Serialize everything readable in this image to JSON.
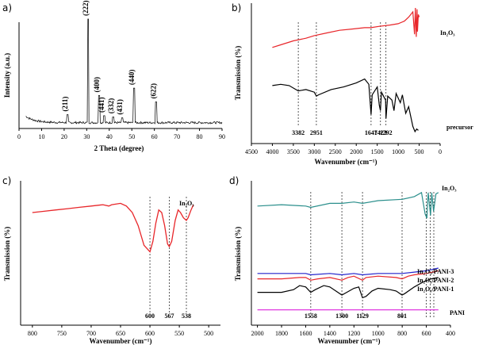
{
  "chart_data": [
    {
      "panel": "a)",
      "type": "line",
      "xlabel": "2 Theta (degree)",
      "ylabel": "Intensity (a.u.)",
      "xlim": [
        0,
        90
      ],
      "xticks": [
        0,
        10,
        20,
        30,
        40,
        50,
        60,
        70,
        80,
        90
      ],
      "color": "#000000",
      "peaks": [
        {
          "label": "(211)",
          "x": 21.5,
          "h": 0.1
        },
        {
          "label": "(222)",
          "x": 30.6,
          "h": 1.0
        },
        {
          "label": "(400)",
          "x": 35.5,
          "h": 0.28
        },
        {
          "label": "(441)",
          "x": 37.7,
          "h": 0.09
        },
        {
          "label": "(332)",
          "x": 41.8,
          "h": 0.08
        },
        {
          "label": "(431)",
          "x": 45.7,
          "h": 0.07
        },
        {
          "label": "(440)",
          "x": 51.0,
          "h": 0.35
        },
        {
          "label": "(622)",
          "x": 60.7,
          "h": 0.22
        }
      ]
    },
    {
      "panel": "b)",
      "type": "line",
      "xlabel": "Wavenumber (cm⁻¹)",
      "ylabel": "Transmission (%)",
      "xlim": [
        4500,
        0
      ],
      "xticks": [
        4500,
        4000,
        3500,
        3000,
        2500,
        2000,
        1500,
        1000,
        500,
        0
      ],
      "series": [
        {
          "name": "In2O3",
          "color": "#e8262a",
          "legend_label": "In₂O₃",
          "points": [
            [
              4000,
              0.7
            ],
            [
              3800,
              0.72
            ],
            [
              3500,
              0.75
            ],
            [
              3200,
              0.77
            ],
            [
              3000,
              0.79
            ],
            [
              2700,
              0.81
            ],
            [
              2400,
              0.83
            ],
            [
              2100,
              0.84
            ],
            [
              1800,
              0.85
            ],
            [
              1650,
              0.85
            ],
            [
              1450,
              0.86
            ],
            [
              1200,
              0.87
            ],
            [
              1000,
              0.88
            ],
            [
              850,
              0.9
            ],
            [
              750,
              0.93
            ],
            [
              650,
              0.97
            ],
            [
              610,
              0.8
            ],
            [
              590,
              1.0
            ],
            [
              570,
              0.78
            ],
            [
              550,
              0.99
            ],
            [
              540,
              0.82
            ],
            [
              520,
              0.95
            ],
            [
              500,
              0.93
            ]
          ]
        },
        {
          "name": "precursor",
          "color": "#000000",
          "legend_label": "precursor",
          "points": [
            [
              4000,
              0.41
            ],
            [
              3800,
              0.42
            ],
            [
              3600,
              0.41
            ],
            [
              3382,
              0.37
            ],
            [
              3200,
              0.38
            ],
            [
              3000,
              0.36
            ],
            [
              2951,
              0.33
            ],
            [
              2900,
              0.34
            ],
            [
              2600,
              0.38
            ],
            [
              2300,
              0.4
            ],
            [
              2000,
              0.43
            ],
            [
              1800,
              0.46
            ],
            [
              1700,
              0.42
            ],
            [
              1647,
              0.19
            ],
            [
              1620,
              0.34
            ],
            [
              1500,
              0.4
            ],
            [
              1450,
              0.26
            ],
            [
              1423,
              0.22
            ],
            [
              1400,
              0.36
            ],
            [
              1300,
              0.3
            ],
            [
              1292,
              0.16
            ],
            [
              1250,
              0.33
            ],
            [
              1150,
              0.3
            ],
            [
              1100,
              0.22
            ],
            [
              1050,
              0.35
            ],
            [
              950,
              0.28
            ],
            [
              900,
              0.34
            ],
            [
              820,
              0.2
            ],
            [
              750,
              0.25
            ],
            [
              650,
              0.1
            ],
            [
              600,
              0.06
            ],
            [
              560,
              0.08
            ],
            [
              520,
              0.07
            ]
          ]
        }
      ],
      "markers": [
        3382,
        2951,
        1647,
        1423,
        1292
      ],
      "marker_labels": [
        "3382",
        "2951",
        "1647",
        "1423",
        "1292"
      ]
    },
    {
      "panel": "c)",
      "type": "line",
      "xlabel": "Wavenumber (cm⁻¹)",
      "ylabel": "Transmission (%)",
      "xlim": [
        820,
        480
      ],
      "xticks": [
        800,
        750,
        700,
        650,
        600,
        550,
        500
      ],
      "series": [
        {
          "name": "In2O3",
          "color": "#e8262a",
          "legend_label": "In₂O₃",
          "points": [
            [
              800,
              0.8
            ],
            [
              780,
              0.81
            ],
            [
              760,
              0.82
            ],
            [
              740,
              0.83
            ],
            [
              720,
              0.84
            ],
            [
              700,
              0.85
            ],
            [
              680,
              0.86
            ],
            [
              670,
              0.85
            ],
            [
              665,
              0.86
            ],
            [
              650,
              0.87
            ],
            [
              640,
              0.85
            ],
            [
              630,
              0.8
            ],
            [
              620,
              0.7
            ],
            [
              610,
              0.55
            ],
            [
              600,
              0.5
            ],
            [
              595,
              0.58
            ],
            [
              590,
              0.72
            ],
            [
              585,
              0.82
            ],
            [
              580,
              0.8
            ],
            [
              575,
              0.7
            ],
            [
              570,
              0.56
            ],
            [
              567,
              0.54
            ],
            [
              563,
              0.58
            ],
            [
              557,
              0.74
            ],
            [
              552,
              0.82
            ],
            [
              548,
              0.8
            ],
            [
              543,
              0.76
            ],
            [
              538,
              0.74
            ],
            [
              535,
              0.76
            ],
            [
              530,
              0.82
            ],
            [
              526,
              0.86
            ]
          ]
        }
      ],
      "markers": [
        600,
        567,
        538
      ],
      "marker_labels": [
        "600",
        "567",
        "538"
      ]
    },
    {
      "panel": "d)",
      "type": "line",
      "xlabel": "Wavenumber (cm⁻¹)",
      "ylabel": "Transmission (%)",
      "xlim": [
        2050,
        400
      ],
      "xticks": [
        2000,
        1800,
        1600,
        1400,
        1200,
        1000,
        800,
        600,
        400
      ],
      "series": [
        {
          "name": "In2O3",
          "color": "#2b8f8c",
          "legend_label": "In₂O₃",
          "points": [
            [
              2000,
              0.86
            ],
            [
              1800,
              0.87
            ],
            [
              1600,
              0.86
            ],
            [
              1558,
              0.85
            ],
            [
              1400,
              0.88
            ],
            [
              1300,
              0.88
            ],
            [
              1200,
              0.89
            ],
            [
              1129,
              0.88
            ],
            [
              1000,
              0.9
            ],
            [
              801,
              0.91
            ],
            [
              700,
              0.93
            ],
            [
              640,
              0.96
            ],
            [
              610,
              0.8
            ],
            [
              595,
              0.77
            ],
            [
              585,
              0.96
            ],
            [
              565,
              0.79
            ],
            [
              555,
              0.96
            ],
            [
              540,
              0.82
            ],
            [
              520,
              0.95
            ],
            [
              500,
              0.96
            ]
          ]
        },
        {
          "name": "In2O3/PANI-3",
          "color": "#2222cc",
          "legend_label": "In₂O₃/PANI-3",
          "points": [
            [
              2000,
              0.36
            ],
            [
              1800,
              0.36
            ],
            [
              1600,
              0.36
            ],
            [
              1558,
              0.35
            ],
            [
              1400,
              0.36
            ],
            [
              1300,
              0.35
            ],
            [
              1200,
              0.36
            ],
            [
              1129,
              0.35
            ],
            [
              1000,
              0.36
            ],
            [
              801,
              0.36
            ],
            [
              700,
              0.37
            ],
            [
              600,
              0.38
            ],
            [
              500,
              0.4
            ]
          ]
        },
        {
          "name": "In2O3/PANI-2",
          "color": "#e8262a",
          "legend_label": "In₂O₃/PANI-2",
          "points": [
            [
              2000,
              0.32
            ],
            [
              1800,
              0.32
            ],
            [
              1650,
              0.33
            ],
            [
              1600,
              0.33
            ],
            [
              1558,
              0.31
            ],
            [
              1500,
              0.32
            ],
            [
              1400,
              0.33
            ],
            [
              1300,
              0.31
            ],
            [
              1250,
              0.33
            ],
            [
              1200,
              0.34
            ],
            [
              1129,
              0.31
            ],
            [
              1100,
              0.33
            ],
            [
              1000,
              0.34
            ],
            [
              850,
              0.33
            ],
            [
              801,
              0.32
            ],
            [
              750,
              0.34
            ],
            [
              700,
              0.35
            ],
            [
              600,
              0.36
            ],
            [
              500,
              0.38
            ]
          ]
        },
        {
          "name": "In2O3/PANI-1",
          "color": "#000000",
          "legend_label": "In₂O₃/PANI-1",
          "points": [
            [
              2000,
              0.22
            ],
            [
              1900,
              0.22
            ],
            [
              1800,
              0.22
            ],
            [
              1700,
              0.24
            ],
            [
              1650,
              0.27
            ],
            [
              1600,
              0.26
            ],
            [
              1558,
              0.22
            ],
            [
              1520,
              0.24
            ],
            [
              1450,
              0.27
            ],
            [
              1400,
              0.26
            ],
            [
              1300,
              0.2
            ],
            [
              1260,
              0.22
            ],
            [
              1200,
              0.25
            ],
            [
              1160,
              0.26
            ],
            [
              1129,
              0.18
            ],
            [
              1100,
              0.19
            ],
            [
              1050,
              0.23
            ],
            [
              1000,
              0.25
            ],
            [
              900,
              0.24
            ],
            [
              850,
              0.23
            ],
            [
              801,
              0.2
            ],
            [
              780,
              0.21
            ],
            [
              700,
              0.26
            ],
            [
              620,
              0.3
            ],
            [
              560,
              0.32
            ],
            [
              500,
              0.33
            ]
          ]
        },
        {
          "name": "PANI",
          "color": "#dd22dd",
          "legend_label": "PANI",
          "points": [
            [
              2000,
              0.09
            ],
            [
              1600,
              0.09
            ],
            [
              1200,
              0.09
            ],
            [
              800,
              0.09
            ],
            [
              600,
              0.09
            ],
            [
              500,
              0.09
            ]
          ]
        }
      ],
      "markers": [
        1558,
        1300,
        1129,
        801,
        600,
        567,
        538
      ],
      "marker_labels": [
        "1558",
        "1300",
        "1129",
        "801"
      ]
    }
  ]
}
